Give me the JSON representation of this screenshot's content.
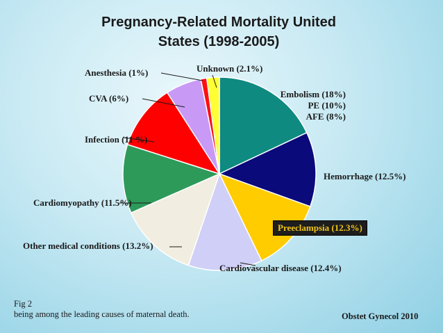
{
  "chart_data": {
    "type": "pie",
    "title_line1": "Pregnancy-Related Mortality  United",
    "title_line2": "States (1998-2005)",
    "slices": [
      {
        "label": "Embolism (18%)",
        "sub_labels": [
          "PE (10%)",
          "AFE (8%)"
        ],
        "value": 18,
        "color": "#0f8a80"
      },
      {
        "label": "Hemorrhage (12.5%)",
        "value": 12.5,
        "color": "#0a0a7a"
      },
      {
        "label": "Preeclampsia (12.3%)",
        "value": 12.3,
        "color": "#ffcc00",
        "highlighted": true
      },
      {
        "label": "Cardiovascular disease (12.4%)",
        "value": 12.4,
        "color": "#cfcff7"
      },
      {
        "label": "Other medical conditions (13.2%)",
        "value": 13.2,
        "color": "#f1ede0"
      },
      {
        "label": "Cardiomyopathy (11.5%)",
        "value": 11.5,
        "color": "#2e9a5a"
      },
      {
        "label": "Infection (11 %)",
        "value": 11,
        "color": "#ff0000"
      },
      {
        "label": "CVA (6%)",
        "value": 6,
        "color": "#c89af5"
      },
      {
        "label": "Anesthesia (1%)",
        "value": 1,
        "color": "#ff1010"
      },
      {
        "label": "Unknown (2.1%)",
        "value": 2.1,
        "color": "#ffff33"
      }
    ]
  },
  "footer": {
    "fig": "Fig 2",
    "caption": "being among the leading causes of maternal death.",
    "source": "Obstet Gynecol 2010"
  }
}
